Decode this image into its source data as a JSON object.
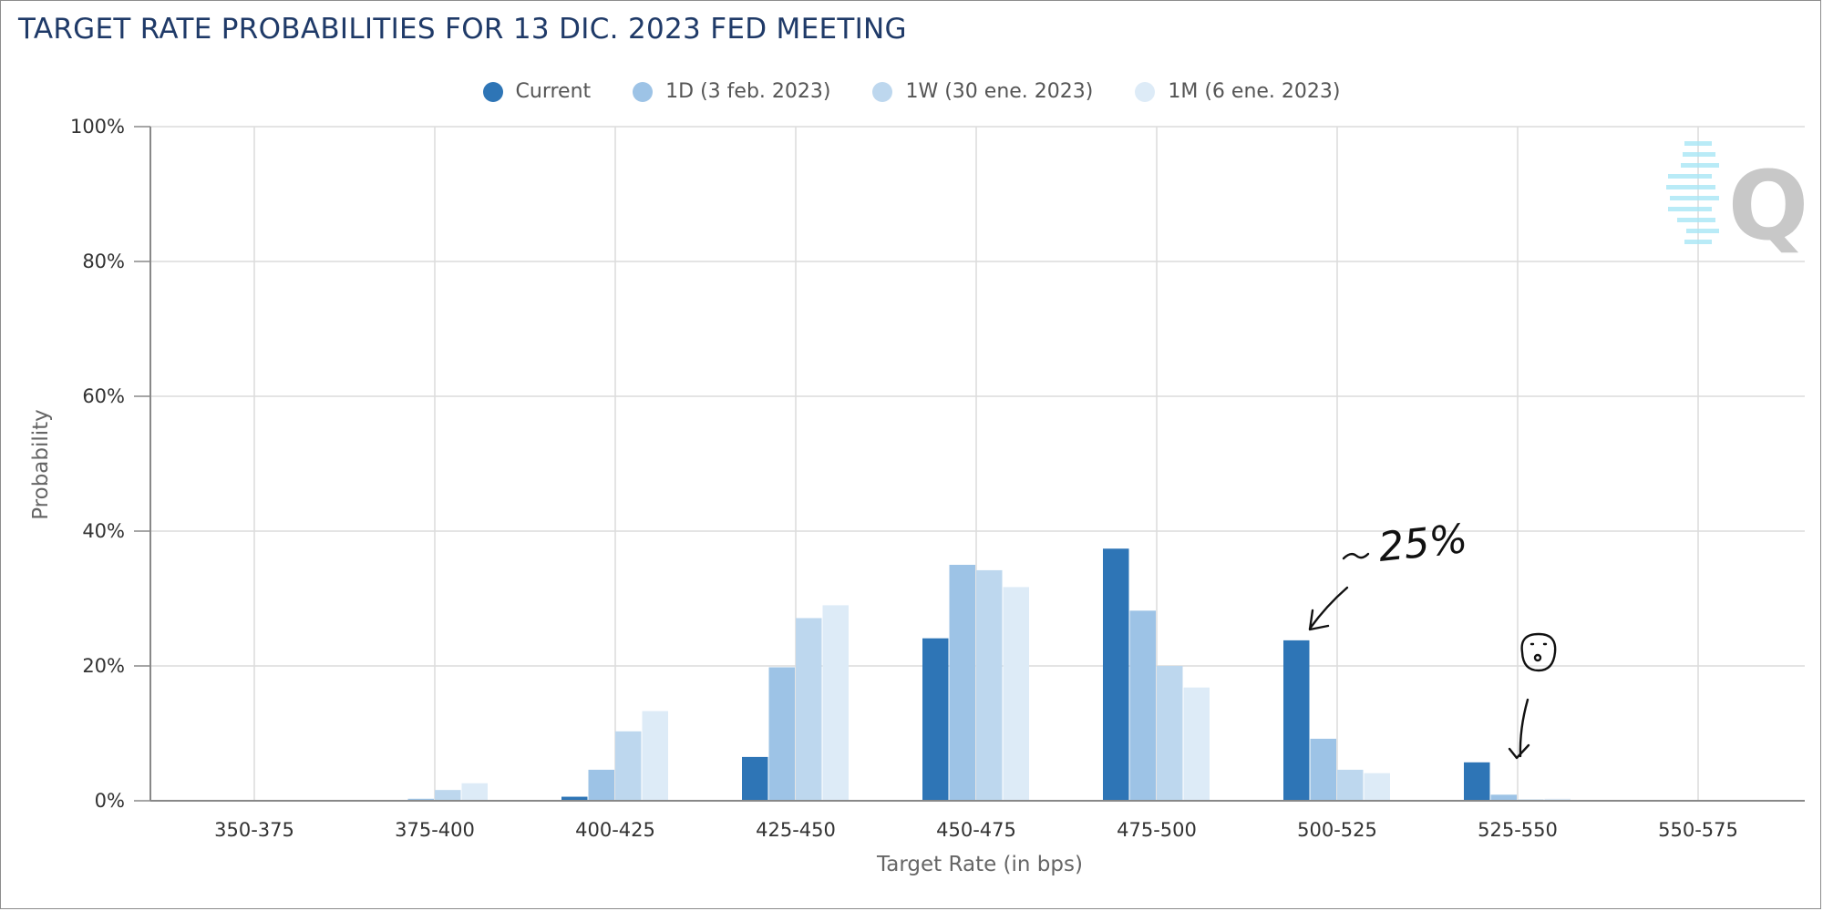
{
  "chart_data": {
    "type": "bar",
    "title": "TARGET RATE PROBABILITIES FOR 13 DIC. 2023 FED MEETING",
    "xlabel": "Target Rate (in bps)",
    "ylabel": "Probability",
    "ylim": [
      0,
      100
    ],
    "y_ticks": [
      "0%",
      "20%",
      "40%",
      "60%",
      "80%",
      "100%"
    ],
    "categories": [
      "350-375",
      "375-400",
      "400-425",
      "425-450",
      "450-475",
      "475-500",
      "500-525",
      "525-550",
      "550-575"
    ],
    "grid": true,
    "legend_position": "top-center",
    "series": [
      {
        "name": "Current",
        "color": "#2e75b6",
        "values": [
          0.0,
          0.0,
          0.6,
          6.5,
          24.1,
          37.4,
          23.8,
          5.7,
          0.0
        ]
      },
      {
        "name": "1D (3 feb. 2023)",
        "color": "#9dc3e6",
        "values": [
          0.0,
          0.3,
          4.6,
          19.8,
          35.0,
          28.2,
          9.2,
          0.9,
          0.0
        ]
      },
      {
        "name": "1W (30 ene. 2023)",
        "color": "#bdd7ee",
        "values": [
          0.0,
          1.6,
          10.3,
          27.1,
          34.2,
          20.0,
          4.6,
          0.2,
          0.0
        ]
      },
      {
        "name": "1M (6 ene. 2023)",
        "color": "#ddebf7",
        "values": [
          0.0,
          2.6,
          13.3,
          29.0,
          31.7,
          16.8,
          4.1,
          0.3,
          0.0
        ]
      }
    ],
    "annotations": [
      {
        "text": "~25%",
        "style": "handwritten",
        "points_to": "500-525 Current"
      },
      {
        "text": "(face doodle)",
        "style": "handwritten",
        "points_to": "525-550 Current"
      }
    ]
  },
  "watermark": {
    "letter": "Q",
    "color": "#c8c8c8",
    "stripe_color": "#a8e6f5"
  }
}
